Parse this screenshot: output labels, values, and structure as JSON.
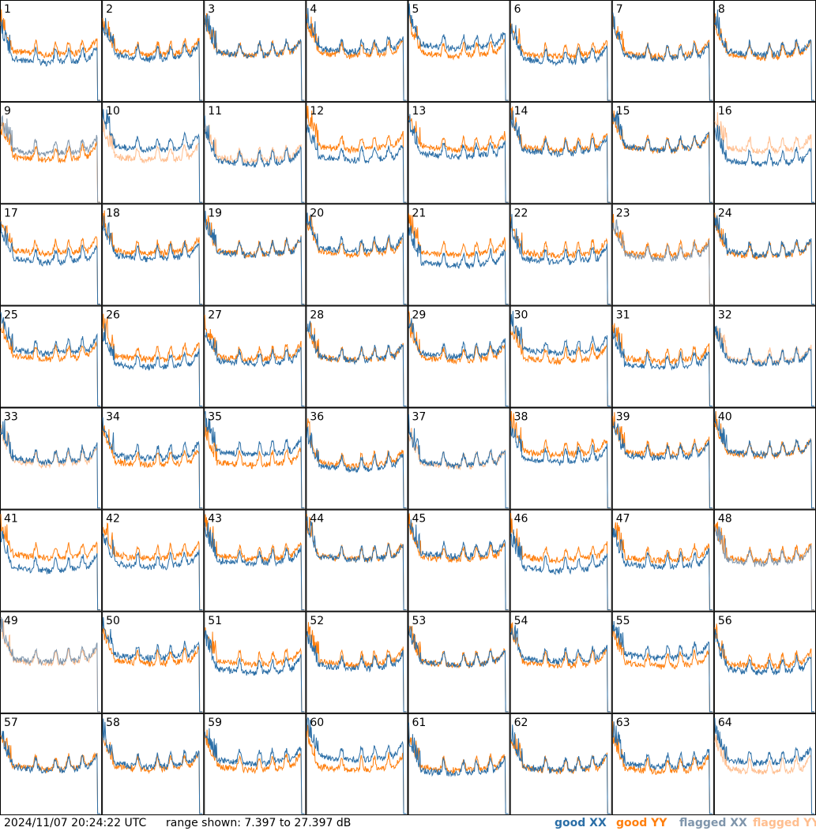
{
  "footer": {
    "timestamp": "2024/11/07 20:24:22 UTC",
    "range_text": "range shown: 7.397 to 27.397 dB"
  },
  "legend": [
    {
      "key": "good_xx",
      "label": "good XX",
      "color": "#2b6ea6"
    },
    {
      "key": "good_yy",
      "label": "good YY",
      "color": "#ff7f0e"
    },
    {
      "key": "flagged_xx",
      "label": "flagged XX",
      "color": "#7f95ab"
    },
    {
      "key": "flagged_yy",
      "label": "flagged YY",
      "color": "#ffbe8f"
    }
  ],
  "chart_data": {
    "type": "line",
    "layout": "small-multiples 8x8",
    "ylim_db": [
      7.397,
      27.397
    ],
    "panels": [
      {
        "id": "1",
        "xx": "good",
        "yy": "good"
      },
      {
        "id": "2",
        "xx": "good",
        "yy": "good"
      },
      {
        "id": "3",
        "xx": "good",
        "yy": "good"
      },
      {
        "id": "4",
        "xx": "good",
        "yy": "good"
      },
      {
        "id": "5",
        "xx": "good",
        "yy": "good"
      },
      {
        "id": "6",
        "xx": "good",
        "yy": "good"
      },
      {
        "id": "7",
        "xx": "good",
        "yy": "good"
      },
      {
        "id": "8",
        "xx": "good",
        "yy": "good"
      },
      {
        "id": "9",
        "xx": "flagged",
        "yy": "good"
      },
      {
        "id": "10",
        "xx": "good",
        "yy": "flagged"
      },
      {
        "id": "11",
        "xx": "good",
        "yy": "flagged"
      },
      {
        "id": "12",
        "xx": "good",
        "yy": "good"
      },
      {
        "id": "13",
        "xx": "good",
        "yy": "good"
      },
      {
        "id": "14",
        "xx": "good",
        "yy": "good"
      },
      {
        "id": "15",
        "xx": "good",
        "yy": "good"
      },
      {
        "id": "16",
        "xx": "good",
        "yy": "flagged"
      },
      {
        "id": "17",
        "xx": "good",
        "yy": "good"
      },
      {
        "id": "18",
        "xx": "good",
        "yy": "good"
      },
      {
        "id": "19",
        "xx": "good",
        "yy": "good"
      },
      {
        "id": "20",
        "xx": "good",
        "yy": "good"
      },
      {
        "id": "21",
        "xx": "good",
        "yy": "good"
      },
      {
        "id": "22",
        "xx": "good",
        "yy": "good"
      },
      {
        "id": "23",
        "xx": "flagged",
        "yy": "good"
      },
      {
        "id": "24",
        "xx": "good",
        "yy": "good"
      },
      {
        "id": "25",
        "xx": "good",
        "yy": "good"
      },
      {
        "id": "26",
        "xx": "good",
        "yy": "good"
      },
      {
        "id": "27",
        "xx": "good",
        "yy": "good"
      },
      {
        "id": "28",
        "xx": "good",
        "yy": "good"
      },
      {
        "id": "29",
        "xx": "good",
        "yy": "good"
      },
      {
        "id": "30",
        "xx": "good",
        "yy": "good"
      },
      {
        "id": "31",
        "xx": "good",
        "yy": "good"
      },
      {
        "id": "32",
        "xx": "good",
        "yy": "flagged"
      },
      {
        "id": "33",
        "xx": "good",
        "yy": "flagged"
      },
      {
        "id": "34",
        "xx": "good",
        "yy": "good"
      },
      {
        "id": "35",
        "xx": "good",
        "yy": "good"
      },
      {
        "id": "36",
        "xx": "good",
        "yy": "good"
      },
      {
        "id": "37",
        "xx": "good",
        "yy": "flagged"
      },
      {
        "id": "38",
        "xx": "good",
        "yy": "good"
      },
      {
        "id": "39",
        "xx": "good",
        "yy": "good"
      },
      {
        "id": "40",
        "xx": "good",
        "yy": "good"
      },
      {
        "id": "41",
        "xx": "good",
        "yy": "good"
      },
      {
        "id": "42",
        "xx": "good",
        "yy": "good"
      },
      {
        "id": "43",
        "xx": "good",
        "yy": "good"
      },
      {
        "id": "44",
        "xx": "good",
        "yy": "good"
      },
      {
        "id": "45",
        "xx": "good",
        "yy": "good"
      },
      {
        "id": "46",
        "xx": "good",
        "yy": "good"
      },
      {
        "id": "47",
        "xx": "good",
        "yy": "good"
      },
      {
        "id": "48",
        "xx": "flagged",
        "yy": "good"
      },
      {
        "id": "49",
        "xx": "flagged",
        "yy": "flagged"
      },
      {
        "id": "50",
        "xx": "good",
        "yy": "good"
      },
      {
        "id": "51",
        "xx": "good",
        "yy": "good"
      },
      {
        "id": "52",
        "xx": "good",
        "yy": "good"
      },
      {
        "id": "53",
        "xx": "good",
        "yy": "good"
      },
      {
        "id": "54",
        "xx": "good",
        "yy": "good"
      },
      {
        "id": "55",
        "xx": "good",
        "yy": "good"
      },
      {
        "id": "56",
        "xx": "good",
        "yy": "good"
      },
      {
        "id": "57",
        "xx": "good",
        "yy": "good"
      },
      {
        "id": "58",
        "xx": "good",
        "yy": "good"
      },
      {
        "id": "59",
        "xx": "good",
        "yy": "good"
      },
      {
        "id": "60",
        "xx": "good",
        "yy": "good"
      },
      {
        "id": "61",
        "xx": "good",
        "yy": "good"
      },
      {
        "id": "62",
        "xx": "good",
        "yy": "good"
      },
      {
        "id": "63",
        "xx": "good",
        "yy": "good"
      },
      {
        "id": "64",
        "xx": "good",
        "yy": "flagged"
      }
    ]
  }
}
